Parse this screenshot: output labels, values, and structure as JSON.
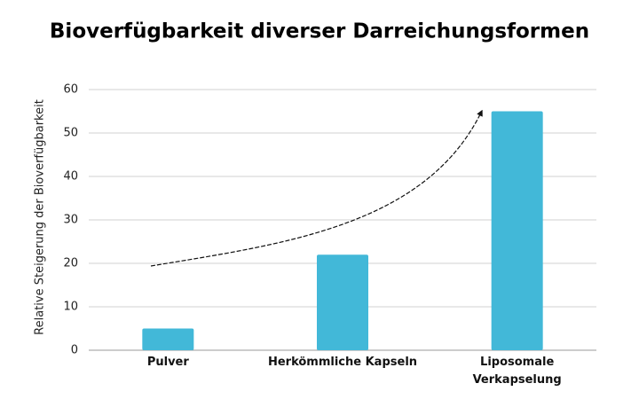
{
  "chart_data": {
    "type": "bar",
    "title": "Bioverfügbarkeit diverser Darreichungsformen",
    "y_label": "Relative Steigerung der Bioverfügbarkeit",
    "categories": [
      "Pulver",
      "Herkömmliche Kapseln",
      "Liposomale Verkapselung"
    ],
    "values": [
      5,
      22,
      55
    ],
    "color": "#42b8d8",
    "ylim": [
      0,
      60
    ],
    "yticks": [
      0,
      10,
      20,
      30,
      40,
      50,
      60
    ],
    "grid": true
  }
}
